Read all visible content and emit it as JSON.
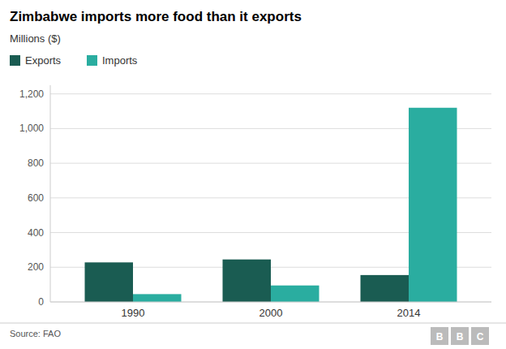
{
  "chart_data": {
    "type": "bar",
    "title": "Zimbabwe imports more food than it exports",
    "subtitle": "Millions ($)",
    "categories": [
      "1990",
      "2000",
      "2014"
    ],
    "series": [
      {
        "name": "Exports",
        "color": "#1a5c52",
        "values": [
          228,
          245,
          155
        ]
      },
      {
        "name": "Imports",
        "color": "#2aada0",
        "values": [
          45,
          95,
          1120
        ]
      }
    ],
    "ylim": [
      0,
      1250
    ],
    "yticks": [
      0,
      200,
      400,
      600,
      800,
      {
        "value": 1000,
        "label": "1,000"
      },
      {
        "value": 1200,
        "label": "1,200"
      }
    ],
    "grid": true,
    "legend": "top-left",
    "source": "Source: FAO",
    "annotations": [
      "B",
      "B",
      "C"
    ]
  }
}
